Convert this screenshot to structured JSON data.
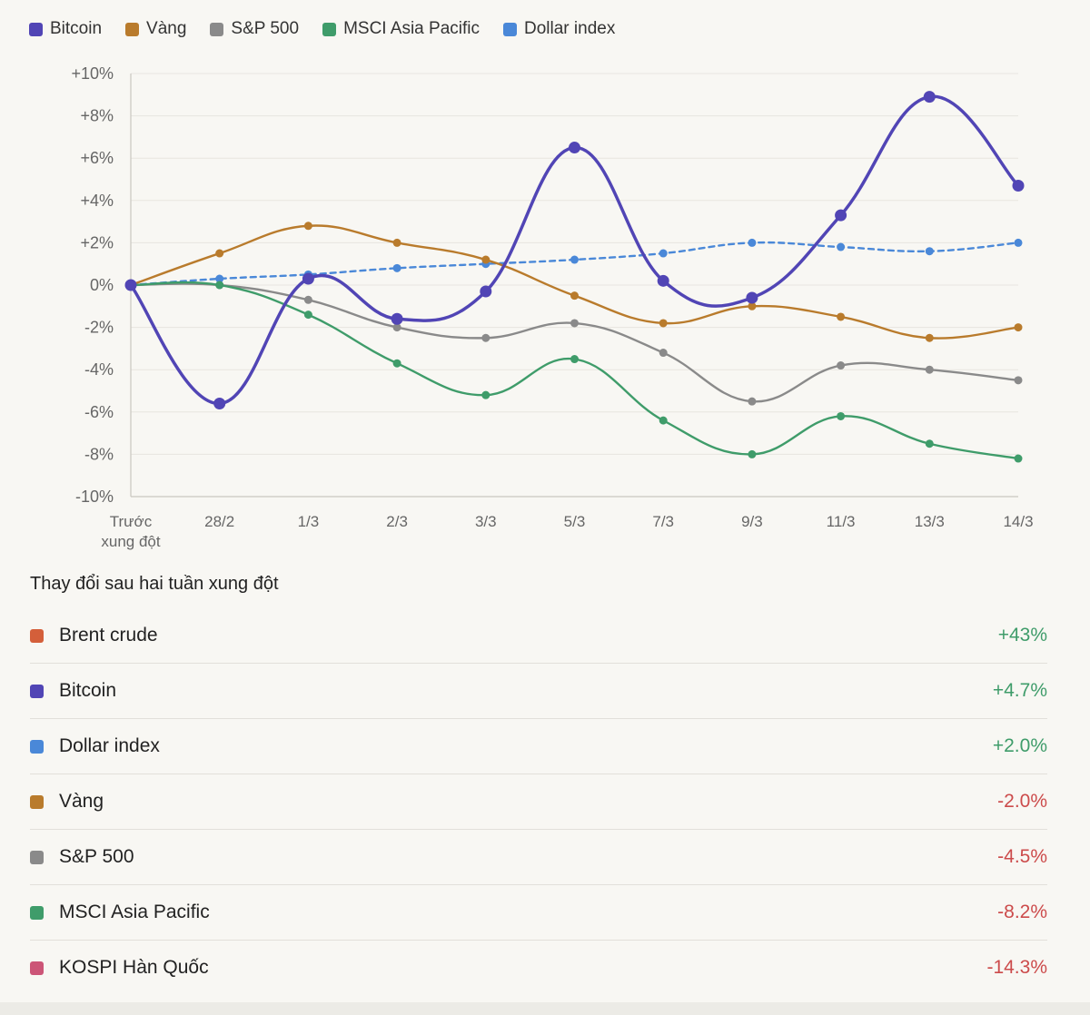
{
  "colors": {
    "bitcoin": "#5145b5",
    "vang": "#b97b2c",
    "sp500": "#8a8a8a",
    "msci": "#3f9c6a",
    "dollar": "#4a88d8",
    "brent": "#d45f3a",
    "kospi": "#cc5577",
    "positive": "#3f9c6a",
    "negative": "#cc4b4b",
    "grid": "#e7e5e0",
    "axis": "#c9c7c0",
    "tick_text": "#666666"
  },
  "chart_data": {
    "type": "line",
    "categories": [
      "Trước\nxung đột",
      "28/2",
      "1/3",
      "2/3",
      "3/3",
      "5/3",
      "7/3",
      "9/3",
      "11/3",
      "13/3",
      "14/3"
    ],
    "ylim": [
      -10,
      10
    ],
    "y_ticks": [
      "+10%",
      "+8%",
      "+6%",
      "+4%",
      "+2%",
      "0%",
      "-2%",
      "-4%",
      "-6%",
      "-8%",
      "-10%"
    ],
    "y_tick_values": [
      10,
      8,
      6,
      4,
      2,
      0,
      -2,
      -4,
      -6,
      -8,
      -10
    ],
    "grid": true,
    "legend_position": "top-left",
    "series": [
      {
        "name": "Bitcoin",
        "color_key": "bitcoin",
        "style": "solid-thick",
        "values": [
          0,
          -5.6,
          0.3,
          -1.6,
          -0.3,
          6.5,
          0.2,
          -0.6,
          3.3,
          8.9,
          4.7
        ]
      },
      {
        "name": "Vàng",
        "color_key": "vang",
        "style": "solid",
        "values": [
          0,
          1.5,
          2.8,
          2.0,
          1.2,
          -0.5,
          -1.8,
          -1.0,
          -1.5,
          -2.5,
          -2.0
        ]
      },
      {
        "name": "S&P 500",
        "color_key": "sp500",
        "style": "solid",
        "values": [
          0,
          0,
          -0.7,
          -2.0,
          -2.5,
          -1.8,
          -3.2,
          -5.5,
          -3.8,
          -4.0,
          -4.5
        ]
      },
      {
        "name": "MSCI Asia Pacific",
        "color_key": "msci",
        "style": "solid",
        "values": [
          0,
          0,
          -1.4,
          -3.7,
          -5.2,
          -3.5,
          -6.4,
          -8.0,
          -6.2,
          -7.5,
          -8.2
        ]
      },
      {
        "name": "Dollar index",
        "color_key": "dollar",
        "style": "dashed",
        "values": [
          0,
          0.3,
          0.5,
          0.8,
          1.0,
          1.2,
          1.5,
          2.0,
          1.8,
          1.6,
          2.0
        ]
      }
    ]
  },
  "legend": [
    {
      "label": "Bitcoin",
      "color_key": "bitcoin"
    },
    {
      "label": "Vàng",
      "color_key": "vang"
    },
    {
      "label": "S&P 500",
      "color_key": "sp500"
    },
    {
      "label": "MSCI Asia Pacific",
      "color_key": "msci"
    },
    {
      "label": "Dollar index",
      "color_key": "dollar"
    }
  ],
  "changes": {
    "title": "Thay đổi sau hai tuần xung đột",
    "rows": [
      {
        "name": "Brent crude",
        "value": "+43%",
        "color_key": "brent",
        "sign": "positive"
      },
      {
        "name": "Bitcoin",
        "value": "+4.7%",
        "color_key": "bitcoin",
        "sign": "positive"
      },
      {
        "name": "Dollar index",
        "value": "+2.0%",
        "color_key": "dollar",
        "sign": "positive"
      },
      {
        "name": "Vàng",
        "value": "-2.0%",
        "color_key": "vang",
        "sign": "negative"
      },
      {
        "name": "S&P 500",
        "value": "-4.5%",
        "color_key": "sp500",
        "sign": "negative"
      },
      {
        "name": "MSCI Asia Pacific",
        "value": "-8.2%",
        "color_key": "msci",
        "sign": "negative"
      },
      {
        "name": "KOSPI Hàn Quốc",
        "value": "-14.3%",
        "color_key": "kospi",
        "sign": "negative"
      }
    ]
  }
}
